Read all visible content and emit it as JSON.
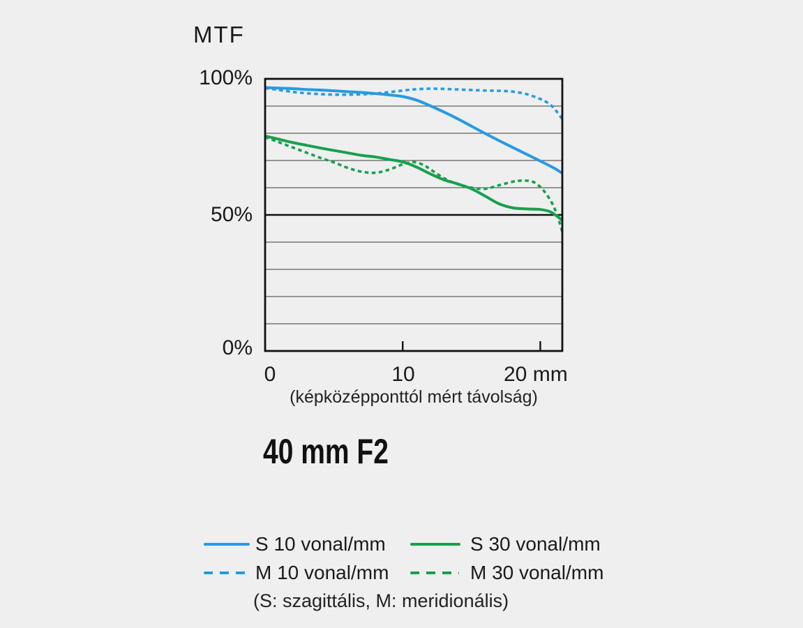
{
  "page": {
    "background_color": "#efefef"
  },
  "chart": {
    "title": "MTF",
    "y_axis": {
      "labels": [
        "100%",
        "50%",
        "0%"
      ]
    },
    "x_axis": {
      "tick_labels": [
        "0",
        "10",
        "20 mm"
      ],
      "caption": "(képközépponttól mért távolság)"
    }
  },
  "lens_title": "40 mm F2",
  "legend": {
    "items": [
      {
        "label": "S 10 vonal/mm",
        "color": "#259be2",
        "style": "solid"
      },
      {
        "label": "S 30 vonal/mm",
        "color": "#17a04e",
        "style": "solid"
      },
      {
        "label": "M 10 vonal/mm",
        "color": "#259be2",
        "style": "dashed"
      },
      {
        "label": "M 30 vonal/mm",
        "color": "#17a04e",
        "style": "dashed"
      }
    ],
    "note": "(S: szagittális, M: meridionális)"
  },
  "chart_data": {
    "type": "line",
    "title": "MTF",
    "xlabel": "(képközépponttól mért távolság)",
    "ylabel": "MTF (%)",
    "xlim": [
      0,
      21.6
    ],
    "ylim": [
      0,
      100
    ],
    "x_ticks": [
      0,
      10,
      20
    ],
    "y_gridline_step": 10,
    "y_emphasis_line": 50,
    "grid": "horizontal-only",
    "legend_position": "below",
    "colors": {
      "blue": "#259be2",
      "green": "#17a04e",
      "axis": "#111111",
      "minor_grid": "#5f5f5f"
    },
    "series": [
      {
        "name": "S 10 vonal/mm",
        "color": "#259be2",
        "style": "solid",
        "points": [
          [
            0,
            96.8
          ],
          [
            1,
            96.6
          ],
          [
            2,
            96.4
          ],
          [
            3,
            96.1
          ],
          [
            4,
            95.9
          ],
          [
            5,
            95.6
          ],
          [
            6,
            95.3
          ],
          [
            7,
            95.0
          ],
          [
            8,
            94.6
          ],
          [
            9,
            94.1
          ],
          [
            10,
            93.5
          ],
          [
            11,
            92.2
          ],
          [
            12,
            90.1
          ],
          [
            13,
            87.8
          ],
          [
            14,
            85.3
          ],
          [
            15,
            82.6
          ],
          [
            16,
            79.9
          ],
          [
            17,
            77.3
          ],
          [
            18,
            74.8
          ],
          [
            19,
            72.3
          ],
          [
            20,
            69.8
          ],
          [
            21,
            67.2
          ],
          [
            21.6,
            65.3
          ]
        ]
      },
      {
        "name": "M 10 vonal/mm",
        "color": "#259be2",
        "style": "dashed",
        "points": [
          [
            0,
            96.6
          ],
          [
            1,
            95.9
          ],
          [
            2,
            95.2
          ],
          [
            3,
            94.7
          ],
          [
            4,
            94.4
          ],
          [
            5,
            94.2
          ],
          [
            6,
            94.2
          ],
          [
            7,
            94.3
          ],
          [
            8,
            94.6
          ],
          [
            9,
            95.1
          ],
          [
            10,
            95.7
          ],
          [
            11,
            96.2
          ],
          [
            12,
            96.4
          ],
          [
            13,
            96.3
          ],
          [
            14,
            96.1
          ],
          [
            15,
            95.9
          ],
          [
            16,
            95.7
          ],
          [
            17,
            95.6
          ],
          [
            18,
            95.3
          ],
          [
            19,
            94.4
          ],
          [
            20,
            92.6
          ],
          [
            20.5,
            91.3
          ],
          [
            21,
            89.2
          ],
          [
            21.6,
            85.2
          ]
        ]
      },
      {
        "name": "S 30 vonal/mm",
        "color": "#17a04e",
        "style": "solid",
        "points": [
          [
            0,
            79.0
          ],
          [
            1,
            77.8
          ],
          [
            2,
            76.6
          ],
          [
            3,
            75.6
          ],
          [
            4,
            74.6
          ],
          [
            5,
            73.7
          ],
          [
            6,
            72.8
          ],
          [
            7,
            71.9
          ],
          [
            8,
            71.3
          ],
          [
            9,
            70.4
          ],
          [
            10,
            69.5
          ],
          [
            11,
            67.6
          ],
          [
            12,
            65.1
          ],
          [
            13,
            62.9
          ],
          [
            14,
            61.4
          ],
          [
            15,
            59.6
          ],
          [
            16,
            56.9
          ],
          [
            17,
            54.1
          ],
          [
            18,
            52.6
          ],
          [
            19,
            52.2
          ],
          [
            20,
            52.0
          ],
          [
            20.7,
            51.2
          ],
          [
            21.2,
            49.6
          ],
          [
            21.6,
            48.0
          ]
        ]
      },
      {
        "name": "M 30 vonal/mm",
        "color": "#17a04e",
        "style": "dashed",
        "points": [
          [
            0,
            78.6
          ],
          [
            1,
            76.7
          ],
          [
            2,
            74.8
          ],
          [
            3,
            72.9
          ],
          [
            4,
            71.0
          ],
          [
            5,
            69.3
          ],
          [
            6,
            67.3
          ],
          [
            7,
            65.9
          ],
          [
            8,
            65.5
          ],
          [
            9,
            66.6
          ],
          [
            10,
            68.6
          ],
          [
            10.8,
            69.4
          ],
          [
            11.5,
            68.4
          ],
          [
            12,
            66.8
          ],
          [
            13,
            63.5
          ],
          [
            14,
            61.3
          ],
          [
            15,
            60.0
          ],
          [
            16,
            59.6
          ],
          [
            17,
            60.9
          ],
          [
            18,
            62.2
          ],
          [
            18.7,
            62.6
          ],
          [
            19.5,
            62.1
          ],
          [
            20.2,
            59.2
          ],
          [
            20.8,
            54.8
          ],
          [
            21.2,
            50.3
          ],
          [
            21.6,
            43.8
          ]
        ]
      }
    ]
  }
}
